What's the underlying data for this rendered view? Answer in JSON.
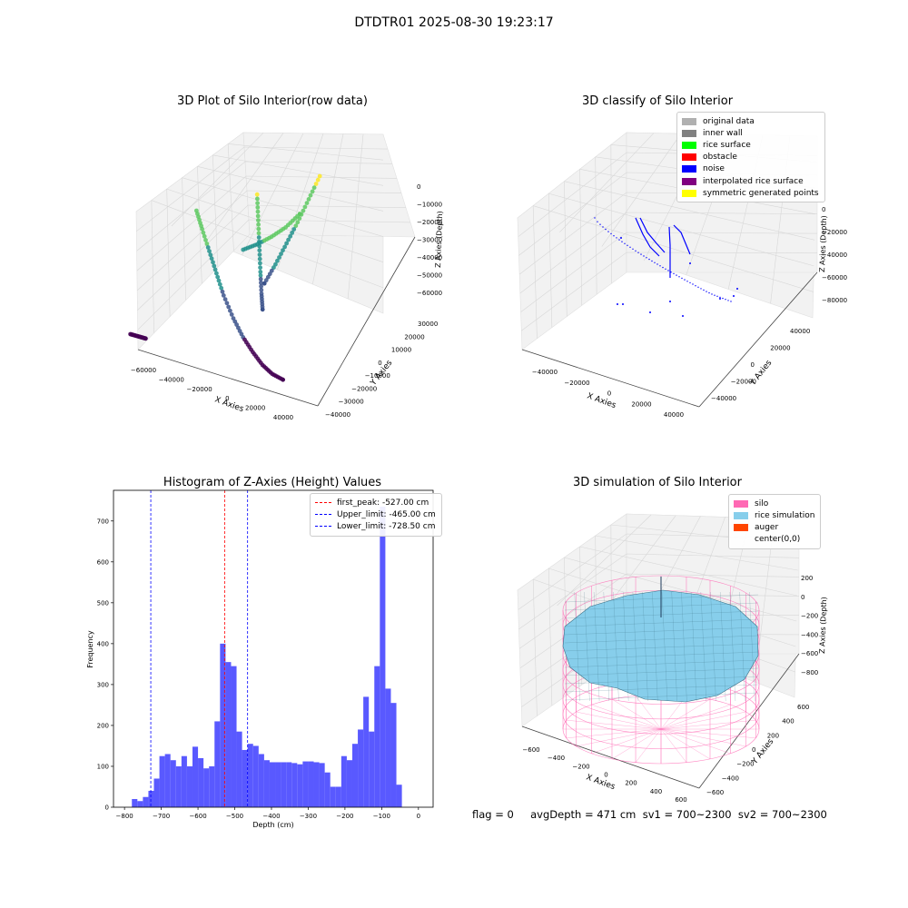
{
  "figure_title": "DTDTR01 2025-08-30 19:23:17",
  "footer": "flag = 0     avgDepth = 471 cm  sv1 = 700~2300  sv2 = 700~2300",
  "colors": {
    "viridis": [
      "#440154",
      "#3b528b",
      "#21918c",
      "#5ec962",
      "#fde725"
    ],
    "noise": "#0000ff",
    "hist_bar": "#5050ff",
    "silo_wire": "#ff69b4",
    "rice_sim": "#87ceeb"
  },
  "chart_data": [
    {
      "type": "scatter3d",
      "title": "3D Plot of Silo Interior(row data)",
      "xlabel": "X Axies",
      "ylabel": "Y Axies",
      "zlabel": "Z Axies (Depth)",
      "x_ticks": [
        "−60000",
        "−40000",
        "−20000",
        "0",
        "20000",
        "40000"
      ],
      "y_ticks": [
        "−40000",
        "−30000",
        "−20000",
        "−10000",
        "0",
        "10000",
        "20000",
        "30000"
      ],
      "z_ticks": [
        "0",
        "−10000",
        "−20000",
        "−30000",
        "−40000",
        "−50000",
        "−60000"
      ],
      "colormap": "viridis",
      "series": [
        {
          "x": [
            -18000,
            -15000,
            -11000,
            -7000,
            -3000,
            2000,
            7000,
            12000,
            17000,
            22000,
            27000
          ],
          "y": [
            -6000,
            -7000,
            -8500,
            -10000,
            -11500,
            -13000,
            -14500,
            -16000,
            -17500,
            -19000,
            -20000
          ],
          "z": [
            -10000,
            -17000,
            -25000,
            -33000,
            -41000,
            -49000,
            -55000,
            -59000,
            -62000,
            -63000,
            -63000
          ]
        },
        {
          "x": [
            -2000,
            0,
            2000,
            4000,
            6000,
            8000
          ],
          "y": [
            4000,
            2000,
            0,
            -2000,
            -4000,
            -6000
          ],
          "z": [
            -7000,
            -17000,
            -27000,
            -37000,
            -45000,
            -50000
          ]
        },
        {
          "x": [
            14000,
            12000,
            10000,
            8000,
            6000,
            4000
          ],
          "y": [
            15000,
            12000,
            9000,
            6000,
            3000,
            0
          ],
          "z": [
            -4000,
            -13000,
            -22000,
            -30000,
            -38000,
            -45000
          ]
        },
        {
          "x": [
            -2000,
            2000,
            6000,
            10000,
            14000
          ],
          "y": [
            -3000,
            -1000,
            1000,
            3000,
            5000
          ],
          "z": [
            -27000,
            -25000,
            -22000,
            -18000,
            -12000
          ]
        },
        {
          "x": [
            -33000,
            -31000,
            -29000,
            -27000
          ],
          "y": [
            -20000,
            -20000,
            -20000,
            -20000
          ],
          "z": [
            -62000,
            -62000,
            -62000,
            -62000
          ]
        }
      ]
    },
    {
      "type": "scatter3d",
      "title": "3D classify of Silo Interior",
      "xlabel": "X Axies",
      "ylabel": "Y Axies",
      "zlabel": "Z Axies (Depth)",
      "x_ticks": [
        "−40000",
        "−20000",
        "0",
        "20000",
        "40000"
      ],
      "y_ticks": [
        "−40000",
        "−20000",
        "0",
        "20000",
        "40000"
      ],
      "z_ticks": [
        "0",
        "−20000",
        "−40000",
        "−60000",
        "−80000"
      ],
      "legend": [
        "original data",
        "inner wall",
        "rice surface",
        "obstacle",
        "noise",
        "interpolated rice surface",
        "symmetric generated points"
      ],
      "legend_colors": [
        "#b0b0b0",
        "#808080",
        "#00ff00",
        "#ff0000",
        "#0000ff",
        "#800080",
        "#ffff00"
      ]
    },
    {
      "type": "bar",
      "title": "Histogram of Z-Axies (Height) Values",
      "xlabel": "Depth (cm)",
      "ylabel": "Frequency",
      "xlim": [
        -830,
        40
      ],
      "ylim": [
        0,
        775
      ],
      "x_ticks": [
        -800,
        -700,
        -600,
        -500,
        -400,
        -300,
        -200,
        -100,
        0
      ],
      "x_tick_labels": [
        "−800",
        "−700",
        "−600",
        "−500",
        "−400",
        "−300",
        "−200",
        "−100",
        "0"
      ],
      "y_ticks": [
        0,
        100,
        200,
        300,
        400,
        500,
        600,
        700
      ],
      "bin_start": -780,
      "bin_width": 15,
      "values": [
        20,
        15,
        25,
        40,
        70,
        125,
        130,
        115,
        100,
        125,
        100,
        148,
        120,
        95,
        100,
        210,
        400,
        355,
        345,
        185,
        140,
        155,
        150,
        130,
        115,
        110,
        110,
        110,
        110,
        108,
        105,
        112,
        112,
        110,
        108,
        85,
        50,
        50,
        125,
        115,
        155,
        190,
        270,
        185,
        345,
        735,
        290,
        255,
        55
      ],
      "lines": [
        {
          "label": "first_peak: -527.00 cm",
          "x": -527,
          "color": "#ff0000"
        },
        {
          "label": "Upper_limit: -465.00 cm",
          "x": -465,
          "color": "#0000ff"
        },
        {
          "label": "Lower_limit: -728.50 cm",
          "x": -728.5,
          "color": "#0000ff"
        }
      ]
    },
    {
      "type": "surface3d",
      "title": "3D simulation of Silo Interior",
      "xlabel": "X Axies",
      "ylabel": "Y Axies",
      "zlabel": "Z Axies (Depth)",
      "x_ticks": [
        "−600",
        "−400",
        "−200",
        "0",
        "200",
        "400",
        "600"
      ],
      "y_ticks": [
        "−600",
        "−400",
        "−200",
        "0",
        "200",
        "400",
        "600"
      ],
      "z_ticks": [
        "200",
        "0",
        "−200",
        "−400",
        "−600",
        "−800"
      ],
      "legend": [
        "silo",
        "rice simulation",
        "auger",
        "center(0,0)"
      ],
      "legend_colors": [
        "#ff69b4",
        "#87ceeb",
        "#ff4500",
        ""
      ]
    }
  ]
}
